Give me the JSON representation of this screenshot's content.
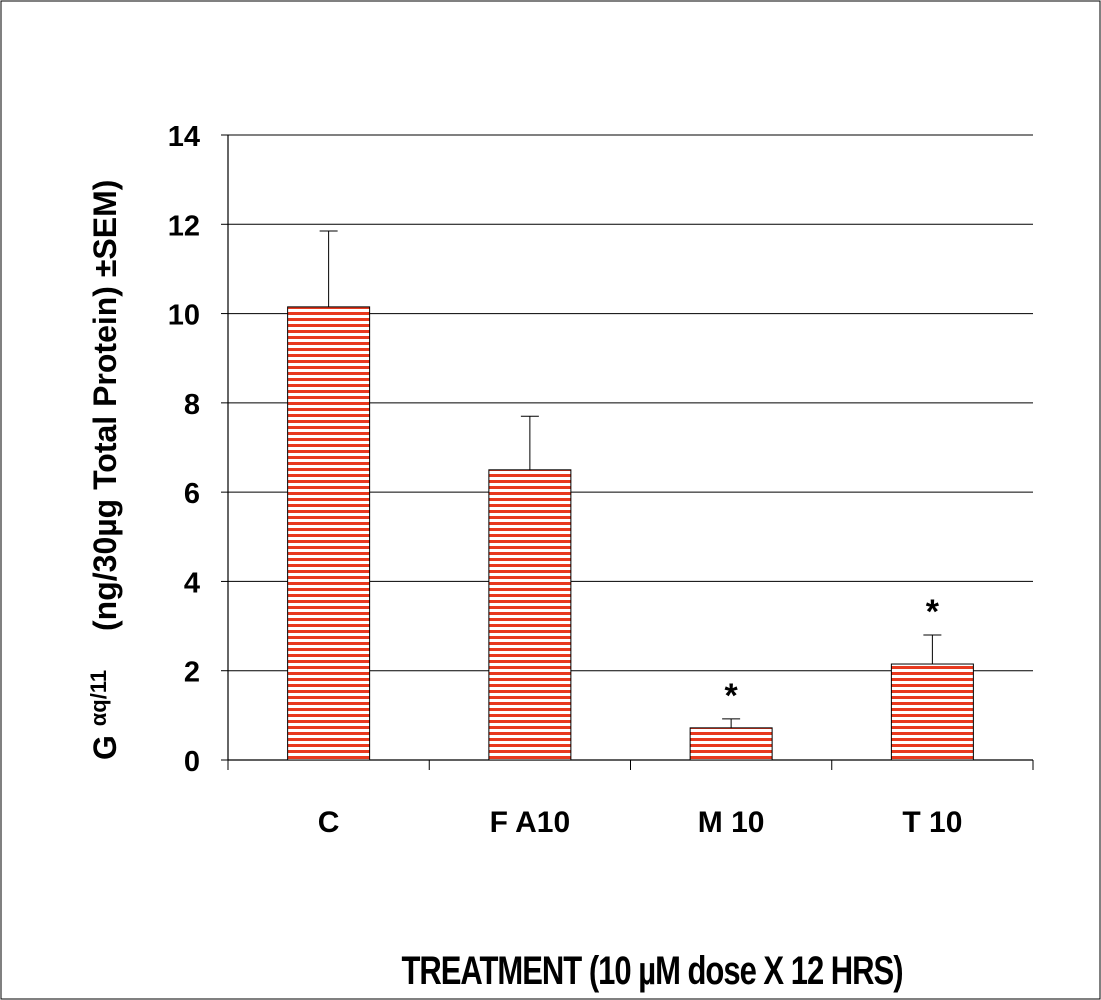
{
  "chart_data": {
    "type": "bar",
    "categories": [
      "C",
      "F A10",
      "M 10",
      "T 10"
    ],
    "values": [
      10.15,
      6.5,
      0.72,
      2.15
    ],
    "errors": [
      1.7,
      1.2,
      0.2,
      0.65
    ],
    "significance": [
      "",
      "",
      "*",
      "*"
    ],
    "xlabel": "TREATMENT (10   µM dose X 12 HRS)",
    "ylabel_prefix": "G",
    "ylabel_subscript": "αq/11",
    "ylabel_rest": "(ng/30µg Total Protein) ±SEM)",
    "ylim": [
      0,
      14
    ],
    "yticks": [
      0,
      2,
      4,
      6,
      8,
      10,
      12,
      14
    ],
    "grid": true,
    "bar_fill": "#e8391e",
    "bar_stripe": "#ffffff",
    "axis_color": "#000000"
  }
}
